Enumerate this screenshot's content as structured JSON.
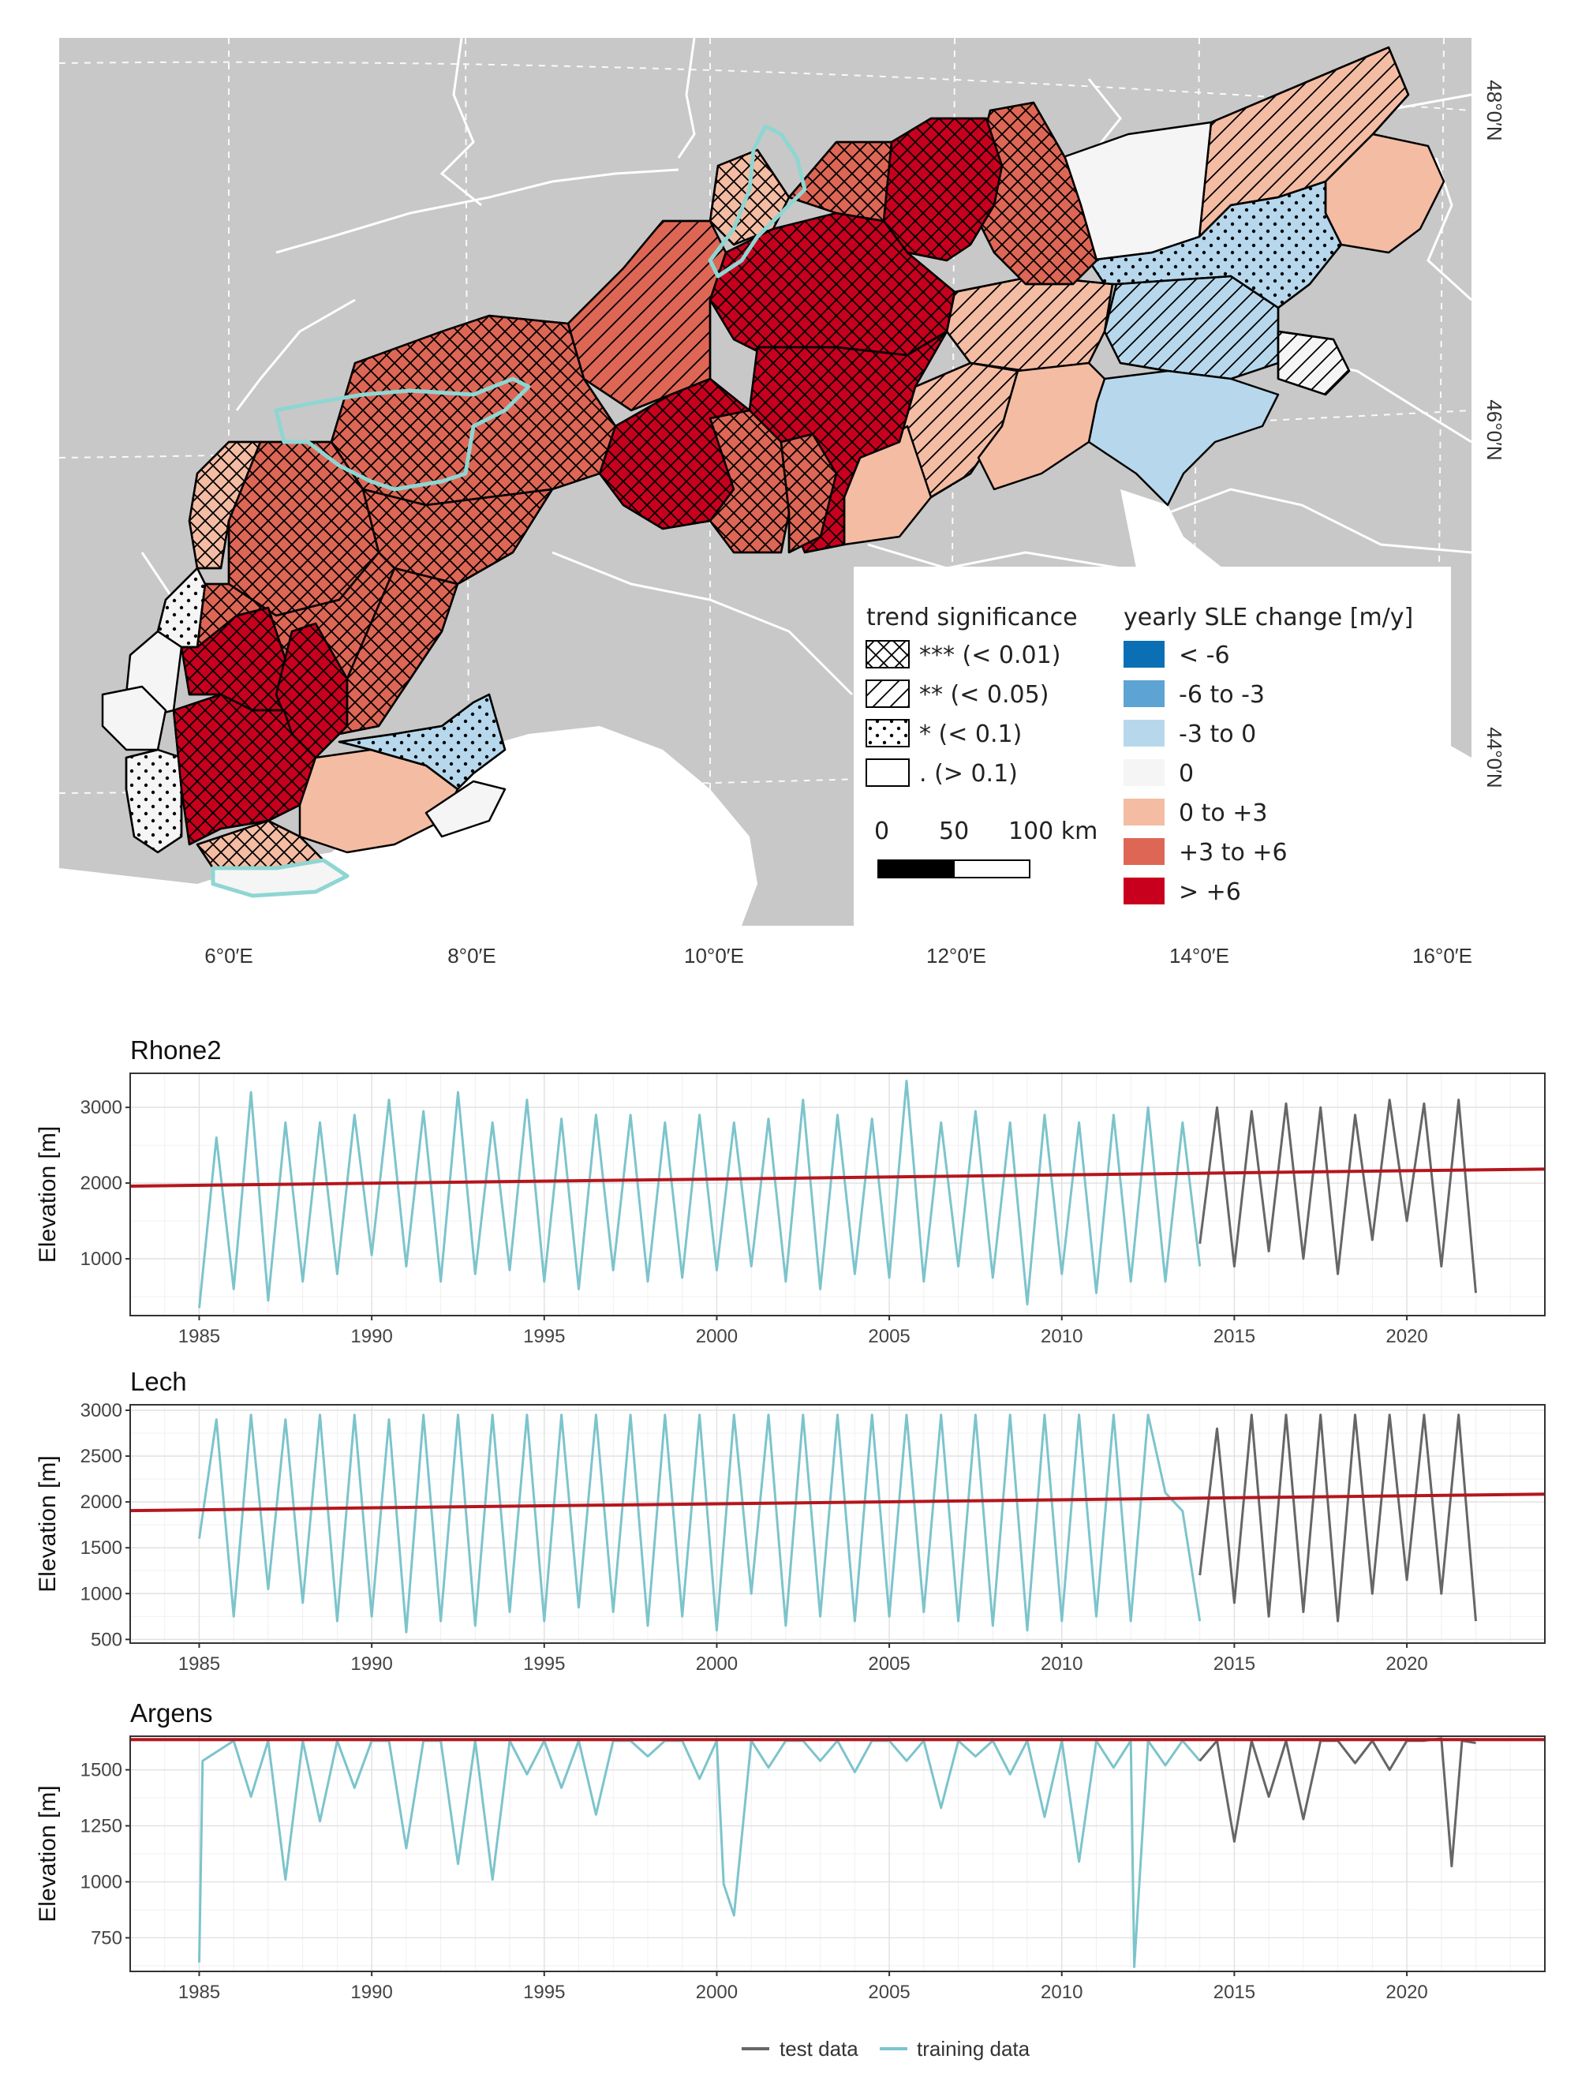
{
  "map": {
    "lon_labels": [
      "6°0′E",
      "8°0′E",
      "10°0′E",
      "12°0′E",
      "14°0′E",
      "16°0′E"
    ],
    "lat_labels": [
      "48°0′N",
      "46°0′N",
      "44°0′N"
    ],
    "colors": {
      "background": "#c8c8c8",
      "ocean": "#ffffff",
      "boundary": "#ffffff",
      "highlight_outline": "#8fd6d2"
    },
    "legend_significance": {
      "title": "trend significance",
      "items": [
        "*** (< 0.01)",
        "** (< 0.05)",
        "* (< 0.1)",
        ". (> 0.1)"
      ],
      "patterns": [
        "crosshatch",
        "diagonal",
        "dots",
        "none"
      ]
    },
    "legend_change": {
      "title": "yearly SLE change [m/y]",
      "items": [
        {
          "label": "< -6",
          "color": "#0a6fb4"
        },
        {
          "label": "-6 to -3",
          "color": "#5da3d3"
        },
        {
          "label": "-3 to 0",
          "color": "#b7d8ec"
        },
        {
          "label": "0",
          "color": "#f5f5f5"
        },
        {
          "label": "0 to +3",
          "color": "#f4bca3"
        },
        {
          "label": "+3 to +6",
          "color": "#de6655"
        },
        {
          "label": "> +6",
          "color": "#c8001e"
        }
      ]
    },
    "scalebar": {
      "labels": [
        "0",
        "50",
        "100 km"
      ]
    }
  },
  "panels": [
    {
      "title": "Rhone2",
      "y_label": "Elevation [m]",
      "y_ticks": [
        1000,
        2000,
        3000
      ]
    },
    {
      "title": "Lech",
      "y_label": "Elevation [m]",
      "y_ticks": [
        500,
        1000,
        1500,
        2000,
        2500,
        3000
      ]
    },
    {
      "title": "Argens",
      "y_label": "Elevation [m]",
      "y_ticks": [
        750,
        1000,
        1250,
        1500
      ]
    }
  ],
  "x_ticks": [
    1985,
    1990,
    1995,
    2000,
    2005,
    2010,
    2015,
    2020
  ],
  "bottom_legend": {
    "test": {
      "label": "test data",
      "color": "#666666"
    },
    "training": {
      "label": "training data",
      "color": "#7cc4cc"
    }
  },
  "trend_color": "#b5161d",
  "chart_data": [
    {
      "type": "line",
      "title": "Rhone2",
      "ylabel": "Elevation [m]",
      "xlim": [
        1983,
        2024
      ],
      "ylim": [
        250,
        3450
      ],
      "trend": {
        "x": [
          1983,
          2024
        ],
        "y": [
          1960,
          2185
        ]
      },
      "series": [
        {
          "name": "training data",
          "x": [
            1985.0,
            1985.5,
            1986.0,
            1986.5,
            1987.0,
            1987.5,
            1988.0,
            1988.5,
            1989.0,
            1989.5,
            1990.0,
            1990.5,
            1991.0,
            1991.5,
            1992.0,
            1992.5,
            1993.0,
            1993.5,
            1994.0,
            1994.5,
            1995.0,
            1995.5,
            1996.0,
            1996.5,
            1997.0,
            1997.5,
            1998.0,
            1998.5,
            1999.0,
            1999.5,
            2000.0,
            2000.5,
            2001.0,
            2001.5,
            2002.0,
            2002.5,
            2003.0,
            2003.5,
            2004.0,
            2004.5,
            2005.0,
            2005.5,
            2006.0,
            2006.5,
            2007.0,
            2007.5,
            2008.0,
            2008.5,
            2009.0,
            2009.5,
            2010.0,
            2010.5,
            2011.0,
            2011.5,
            2012.0,
            2012.5,
            2013.0,
            2013.5,
            2014.0
          ],
          "y": [
            350,
            2600,
            600,
            3200,
            450,
            2800,
            700,
            2800,
            800,
            2900,
            1050,
            3100,
            900,
            2950,
            700,
            3200,
            800,
            2800,
            850,
            3100,
            700,
            2850,
            600,
            2900,
            850,
            2900,
            700,
            2800,
            750,
            2900,
            850,
            2800,
            900,
            2850,
            700,
            3100,
            600,
            2900,
            800,
            2850,
            750,
            3350,
            700,
            2800,
            900,
            2950,
            750,
            2800,
            400,
            2900,
            800,
            2800,
            550,
            2900,
            700,
            3000,
            700,
            2800,
            900
          ]
        },
        {
          "name": "test data",
          "x": [
            2014.0,
            2014.5,
            2015.0,
            2015.5,
            2016.0,
            2016.5,
            2017.0,
            2017.5,
            2018.0,
            2018.5,
            2019.0,
            2019.5,
            2020.0,
            2020.5,
            2021.0,
            2021.5,
            2022.0
          ],
          "y": [
            1200,
            3000,
            900,
            2950,
            1100,
            3050,
            1000,
            3000,
            800,
            2900,
            1250,
            3100,
            1500,
            3050,
            900,
            3100,
            550
          ]
        }
      ]
    },
    {
      "type": "line",
      "title": "Lech",
      "ylabel": "Elevation [m]",
      "xlim": [
        1983,
        2024
      ],
      "ylim": [
        460,
        3060
      ],
      "trend": {
        "x": [
          1983,
          2024
        ],
        "y": [
          1905,
          2085
        ]
      },
      "series": [
        {
          "name": "training data",
          "x": [
            1985.0,
            1985.5,
            1986.0,
            1986.5,
            1987.0,
            1987.5,
            1988.0,
            1988.5,
            1989.0,
            1989.5,
            1990.0,
            1990.5,
            1991.0,
            1991.5,
            1992.0,
            1992.5,
            1993.0,
            1993.5,
            1994.0,
            1994.5,
            1995.0,
            1995.5,
            1996.0,
            1996.5,
            1997.0,
            1997.5,
            1998.0,
            1998.5,
            1999.0,
            1999.5,
            2000.0,
            2000.5,
            2001.0,
            2001.5,
            2002.0,
            2002.5,
            2003.0,
            2003.5,
            2004.0,
            2004.5,
            2005.0,
            2005.5,
            2006.0,
            2006.5,
            2007.0,
            2007.5,
            2008.0,
            2008.5,
            2009.0,
            2009.5,
            2010.0,
            2010.5,
            2011.0,
            2011.5,
            2012.0,
            2012.5,
            2013.0,
            2013.5,
            2014.0
          ],
          "y": [
            1600,
            2900,
            750,
            2950,
            1050,
            2900,
            900,
            2950,
            700,
            2950,
            750,
            2900,
            580,
            2950,
            700,
            2950,
            650,
            2950,
            800,
            2950,
            700,
            2950,
            850,
            2950,
            800,
            2950,
            650,
            2950,
            750,
            2950,
            600,
            2950,
            1000,
            2950,
            650,
            2950,
            750,
            2950,
            700,
            2950,
            750,
            2950,
            800,
            2950,
            700,
            2950,
            650,
            2950,
            600,
            2950,
            700,
            2950,
            750,
            2950,
            700,
            2950,
            2100,
            1900,
            700
          ]
        },
        {
          "name": "test data",
          "x": [
            2014.0,
            2014.5,
            2015.0,
            2015.5,
            2016.0,
            2016.5,
            2017.0,
            2017.5,
            2018.0,
            2018.5,
            2019.0,
            2019.5,
            2020.0,
            2020.5,
            2021.0,
            2021.5,
            2022.0
          ],
          "y": [
            1200,
            2800,
            900,
            2950,
            750,
            2950,
            800,
            2950,
            700,
            2950,
            1000,
            2950,
            1150,
            2950,
            1000,
            2950,
            700
          ]
        }
      ]
    },
    {
      "type": "line",
      "title": "Argens",
      "ylabel": "Elevation [m]",
      "xlim": [
        1983,
        2024
      ],
      "ylim": [
        600,
        1650
      ],
      "trend": {
        "x": [
          1983,
          2024
        ],
        "y": [
          1635,
          1635
        ]
      },
      "series": [
        {
          "name": "training data",
          "x": [
            1985.0,
            1985.1,
            1986.0,
            1986.5,
            1987.0,
            1987.5,
            1988.0,
            1988.5,
            1989.0,
            1989.5,
            1990.0,
            1990.5,
            1991.0,
            1991.5,
            1992.0,
            1992.5,
            1993.0,
            1993.5,
            1994.0,
            1994.5,
            1995.0,
            1995.5,
            1996.0,
            1996.5,
            1997.0,
            1997.5,
            1998.0,
            1998.5,
            1999.0,
            1999.5,
            2000.0,
            2000.2,
            2000.5,
            2001.0,
            2001.5,
            2002.0,
            2002.5,
            2003.0,
            2003.5,
            2004.0,
            2004.5,
            2005.0,
            2005.5,
            2006.0,
            2006.5,
            2007.0,
            2007.5,
            2008.0,
            2008.5,
            2009.0,
            2009.5,
            2010.0,
            2010.5,
            2011.0,
            2011.5,
            2012.0,
            2012.1,
            2012.5,
            2013.0,
            2013.5,
            2014.0
          ],
          "y": [
            640,
            1540,
            1630,
            1380,
            1630,
            1010,
            1630,
            1270,
            1630,
            1420,
            1630,
            1630,
            1150,
            1630,
            1630,
            1080,
            1630,
            1010,
            1630,
            1480,
            1630,
            1420,
            1630,
            1300,
            1630,
            1630,
            1560,
            1630,
            1630,
            1460,
            1630,
            990,
            850,
            1630,
            1510,
            1630,
            1630,
            1540,
            1630,
            1490,
            1630,
            1630,
            1540,
            1630,
            1330,
            1630,
            1560,
            1630,
            1480,
            1630,
            1290,
            1630,
            1090,
            1630,
            1510,
            1630,
            620,
            1630,
            1520,
            1630,
            1540
          ]
        },
        {
          "name": "test data",
          "x": [
            2014.0,
            2014.5,
            2015.0,
            2015.5,
            2016.0,
            2016.5,
            2017.0,
            2017.5,
            2018.0,
            2018.5,
            2019.0,
            2019.5,
            2020.0,
            2020.5,
            2021.0,
            2021.3,
            2021.6,
            2022.0
          ],
          "y": [
            1540,
            1630,
            1180,
            1630,
            1380,
            1630,
            1280,
            1630,
            1630,
            1530,
            1630,
            1500,
            1630,
            1630,
            1640,
            1070,
            1630,
            1620
          ]
        }
      ]
    }
  ]
}
